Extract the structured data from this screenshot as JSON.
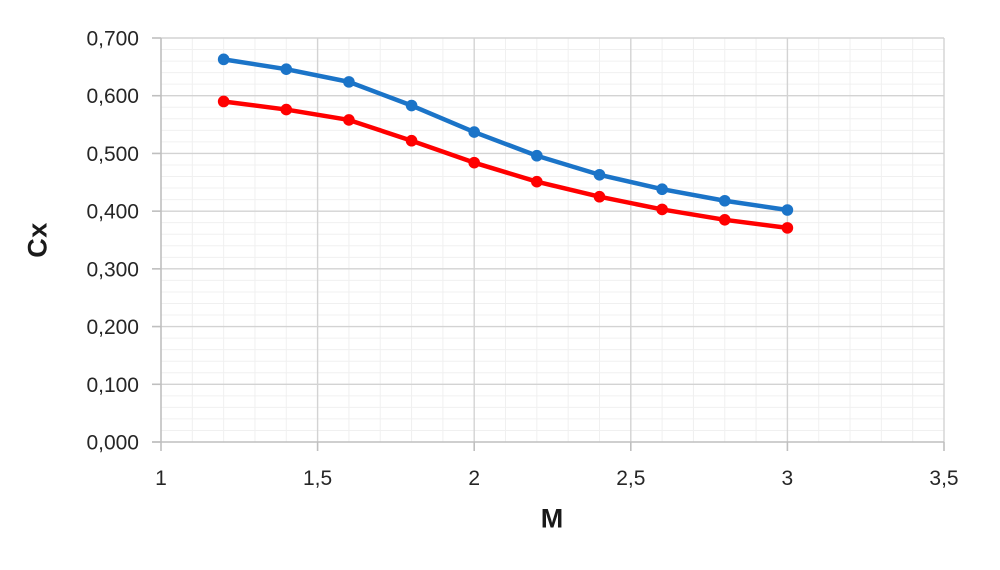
{
  "chart_data": {
    "type": "line",
    "title": "",
    "xlabel": "M",
    "ylabel": "Cx",
    "x": [
      1.2,
      1.4,
      1.6,
      1.8,
      2.0,
      2.2,
      2.4,
      2.6,
      2.8,
      3.0
    ],
    "series": [
      {
        "name": "upper-curve-blue",
        "color": "#1B74C8",
        "values": [
          0.663,
          0.646,
          0.624,
          0.583,
          0.537,
          0.496,
          0.463,
          0.438,
          0.418,
          0.402
        ]
      },
      {
        "name": "lower-curve-red",
        "color": "#FF0000",
        "values": [
          0.59,
          0.576,
          0.558,
          0.522,
          0.484,
          0.451,
          0.425,
          0.403,
          0.385,
          0.371
        ]
      }
    ],
    "xlim": [
      1,
      3.5
    ],
    "ylim": [
      0,
      0.7
    ],
    "x_major_step": 0.5,
    "x_minor_step": 0.1,
    "y_major_step": 0.1,
    "y_minor_step": 0.02,
    "x_tick_labels": [
      "1",
      "1,5",
      "2",
      "2,5",
      "3",
      "3,5"
    ],
    "y_tick_labels": [
      "0,000",
      "0,100",
      "0,200",
      "0,300",
      "0,400",
      "0,500",
      "0,600",
      "0,700"
    ],
    "legend": "none",
    "grid": {
      "major_color": "#D3D3D3",
      "minor_color": "#F0F0F0",
      "axis_color": "#BFBFBF"
    },
    "tick_label_color": "#262626",
    "line_width": 4.5,
    "marker_radius": 5.8
  }
}
